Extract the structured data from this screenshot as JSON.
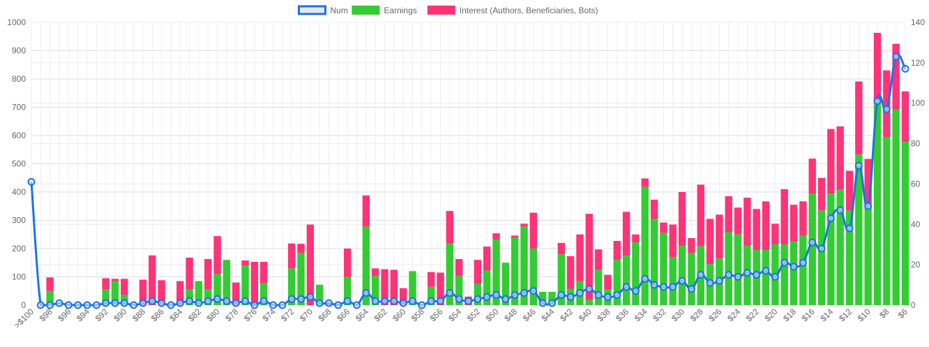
{
  "chart_data": {
    "type": "bar",
    "stacked": true,
    "legend": {
      "position": "top",
      "items": [
        {
          "label": "Num",
          "color": "#1a73e8",
          "kind": "line"
        },
        {
          "label": "Earnings",
          "color": "#33cc33",
          "kind": "bar"
        },
        {
          "label": "Interest (Authors, Beneficiaries, Bots)",
          "color": "#ff3377",
          "kind": "bar"
        }
      ]
    },
    "grid": true,
    "y_left": {
      "min": 0,
      "max": 1000,
      "ticks": [
        "0",
        "100",
        "200",
        "300",
        "400",
        "500",
        "600",
        "700",
        "800",
        "900",
        "1000"
      ]
    },
    "y_right": {
      "min": 0,
      "max": 140,
      "ticks": [
        "0",
        "20",
        "40",
        "60",
        "80",
        "100",
        "120",
        "140"
      ]
    },
    "categories": [
      ">$100",
      "$99",
      "$98",
      "$97",
      "$96",
      "$95",
      "$94",
      "$93",
      "$92",
      "$91",
      "$90",
      "$89",
      "$88",
      "$87",
      "$86",
      "$85",
      "$84",
      "$83",
      "$82",
      "$81",
      "$80",
      "$79",
      "$78",
      "$77",
      "$76",
      "$75",
      "$74",
      "$73",
      "$72",
      "$71",
      "$70",
      "$69",
      "$68",
      "$67",
      "$66",
      "$65",
      "$64",
      "$63",
      "$62",
      "$61",
      "$60",
      "$59",
      "$58",
      "$57",
      "$56",
      "$55",
      "$54",
      "$53",
      "$52",
      "$51",
      "$50",
      "$49",
      "$48",
      "$47",
      "$46",
      "$45",
      "$44",
      "$43",
      "$42",
      "$41",
      "$40",
      "$39",
      "$38",
      "$37",
      "$36",
      "$35",
      "$34",
      "$33",
      "$32",
      "$31",
      "$30",
      "$29",
      "$28",
      "$27",
      "$26",
      "$25",
      "$24",
      "$23",
      "$22",
      "$21",
      "$20",
      "$19",
      "$18",
      "$17",
      "$16",
      "$15",
      "$14",
      "$13",
      "$12",
      "$11",
      "$10",
      "$9",
      "$8",
      "$7",
      "$6"
    ],
    "tick_labels": [
      ">$100",
      "$98",
      "$96",
      "$94",
      "$92",
      "$90",
      "$88",
      "$86",
      "$84",
      "$82",
      "$80",
      "$78",
      "$76",
      "$74",
      "$72",
      "$70",
      "$68",
      "$66",
      "$64",
      "$62",
      "$60",
      "$58",
      "$56",
      "$54",
      "$52",
      "$50",
      "$48",
      "$46",
      "$44",
      "$42",
      "$40",
      "$38",
      "$36",
      "$34",
      "$32",
      "$30",
      "$28",
      "$26",
      "$24",
      "$22",
      "$20",
      "$18",
      "$16",
      "$14",
      "$12",
      "$10",
      "$8",
      "$6"
    ],
    "series": [
      {
        "name": "Earnings",
        "axis": "left",
        "values": [
          0,
          0,
          50,
          0,
          0,
          0,
          0,
          0,
          55,
          85,
          35,
          0,
          0,
          0,
          0,
          0,
          0,
          55,
          85,
          55,
          110,
          160,
          0,
          140,
          0,
          78,
          0,
          0,
          130,
          185,
          0,
          72,
          0,
          0,
          100,
          0,
          278,
          103,
          0,
          0,
          0,
          118,
          0,
          65,
          0,
          218,
          103,
          0,
          75,
          122,
          232,
          150,
          238,
          278,
          200,
          47,
          47,
          180,
          58,
          85,
          18,
          125,
          55,
          160,
          175,
          222,
          418,
          305,
          255,
          170,
          210,
          185,
          208,
          145,
          165,
          258,
          250,
          210,
          195,
          195,
          215,
          215,
          225,
          245,
          395,
          335,
          395,
          410,
          335,
          533,
          345,
          720,
          595,
          692,
          578
        ]
      },
      {
        "name": "Interest (Authors, Beneficiaries, Bots)",
        "axis": "left",
        "values": [
          0,
          0,
          48,
          0,
          0,
          0,
          0,
          0,
          40,
          8,
          58,
          0,
          90,
          176,
          88,
          0,
          85,
          113,
          0,
          108,
          134,
          0,
          80,
          18,
          153,
          75,
          0,
          0,
          88,
          32,
          285,
          0,
          10,
          0,
          100,
          0,
          110,
          27,
          127,
          125,
          60,
          2,
          0,
          52,
          115,
          115,
          60,
          30,
          85,
          85,
          22,
          0,
          8,
          10,
          127,
          0,
          0,
          40,
          115,
          165,
          305,
          72,
          52,
          67,
          155,
          28,
          30,
          68,
          37,
          115,
          190,
          52,
          218,
          160,
          155,
          127,
          95,
          170,
          145,
          172,
          73,
          195,
          130,
          122,
          123,
          115,
          228,
          222,
          140,
          258,
          172,
          243,
          235,
          232,
          178
        ]
      },
      {
        "name": "Num",
        "axis": "right",
        "type": "line",
        "values": [
          61,
          0,
          0,
          1,
          0,
          0,
          0,
          0,
          1,
          1,
          1,
          0,
          1,
          2,
          1,
          0,
          1,
          2,
          1,
          2,
          3,
          2,
          1,
          2,
          0,
          2,
          0,
          0,
          3,
          3,
          4,
          1,
          1,
          0,
          2,
          0,
          6,
          2,
          2,
          2,
          1,
          2,
          0,
          2,
          2,
          6,
          3,
          2,
          3,
          4,
          5,
          3,
          5,
          6,
          7,
          1,
          1,
          5,
          4,
          6,
          8,
          5,
          4,
          5,
          9,
          7,
          13,
          10,
          9,
          9,
          12,
          8,
          15,
          11,
          12,
          15,
          14,
          16,
          15,
          17,
          14,
          21,
          19,
          21,
          31,
          28,
          43,
          47,
          38,
          69,
          49,
          101,
          97,
          123,
          117
        ]
      }
    ]
  }
}
